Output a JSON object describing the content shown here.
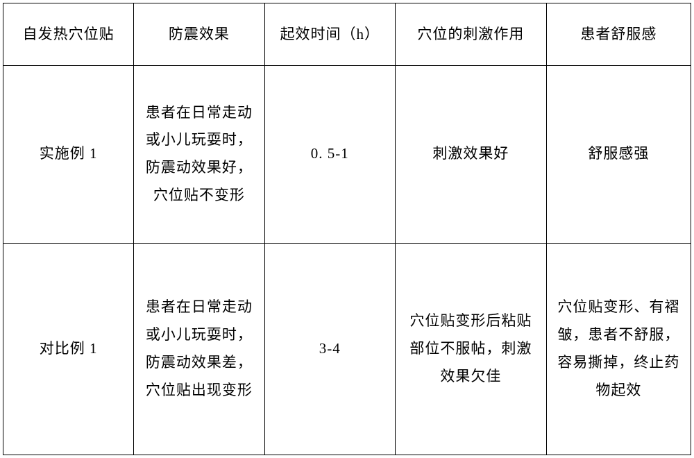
{
  "table": {
    "type": "table",
    "background_color": "#ffffff",
    "border_color": "#000000",
    "border_width": 1.5,
    "font_family": "SimSun",
    "font_size": 21,
    "line_height": 1.9,
    "text_color": "#000000",
    "columns": [
      {
        "header": "自发热穴位贴",
        "width_pct": 19
      },
      {
        "header": "防震效果",
        "width_pct": 19
      },
      {
        "header": "起效时间（h）",
        "width_pct": 19
      },
      {
        "header": "穴位的刺激作用",
        "width_pct": 22
      },
      {
        "header": "患者舒服感",
        "width_pct": 21
      }
    ],
    "rows": [
      {
        "c0": "实施例 1",
        "c1": "患者在日常走动或小儿玩耍时，防震动效果好，穴位贴不变形",
        "c2": "0. 5-1",
        "c3": "刺激效果好",
        "c4": "舒服感强"
      },
      {
        "c0": "对比例 1",
        "c1": "患者在日常走动或小儿玩耍时，防震动效果差，穴位贴出现变形",
        "c2": "3-4",
        "c3": "穴位贴变形后粘贴部位不服帖，刺激效果欠佳",
        "c4": "穴位贴变形、有褶皱，患者不舒服，容易撕掉，终止药物起效"
      }
    ]
  }
}
